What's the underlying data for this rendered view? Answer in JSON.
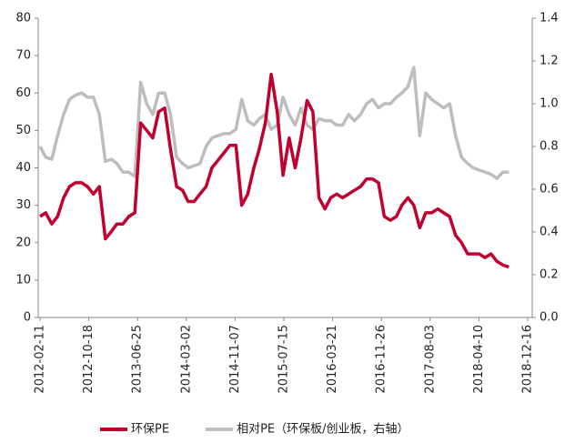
{
  "chart_data": {
    "type": "line",
    "x": [
      "2012-02-11",
      "2012-03-11",
      "2012-04-11",
      "2012-05-11",
      "2012-06-11",
      "2012-07-11",
      "2012-08-11",
      "2012-09-11",
      "2012-10-11",
      "2012-11-11",
      "2012-12-11",
      "2013-01-11",
      "2013-02-11",
      "2013-03-11",
      "2013-04-11",
      "2013-05-11",
      "2013-06-11",
      "2013-07-11",
      "2013-08-11",
      "2013-09-11",
      "2013-10-11",
      "2013-11-11",
      "2013-12-11",
      "2014-01-11",
      "2014-02-11",
      "2014-03-11",
      "2014-04-11",
      "2014-05-11",
      "2014-06-11",
      "2014-07-11",
      "2014-08-11",
      "2014-09-11",
      "2014-10-11",
      "2014-11-11",
      "2014-12-11",
      "2015-01-11",
      "2015-02-11",
      "2015-03-11",
      "2015-04-11",
      "2015-05-11",
      "2015-06-11",
      "2015-07-11",
      "2015-08-11",
      "2015-09-11",
      "2015-10-11",
      "2015-11-11",
      "2015-12-11",
      "2016-01-11",
      "2016-02-11",
      "2016-03-11",
      "2016-04-11",
      "2016-05-11",
      "2016-06-11",
      "2016-07-11",
      "2016-08-11",
      "2016-09-11",
      "2016-10-11",
      "2016-11-11",
      "2016-12-11",
      "2017-01-11",
      "2017-02-11",
      "2017-03-11",
      "2017-04-11",
      "2017-05-11",
      "2017-06-11",
      "2017-07-11",
      "2017-08-11",
      "2017-09-11",
      "2017-10-11",
      "2017-11-11",
      "2017-12-11",
      "2018-01-11",
      "2018-02-11",
      "2018-03-11",
      "2018-04-11",
      "2018-05-11",
      "2018-06-11",
      "2018-07-11",
      "2018-08-11",
      "2018-09-11"
    ],
    "series": [
      {
        "name": "环保PE",
        "color": "#c0002f",
        "values": [
          27,
          28,
          25,
          27,
          32,
          35,
          36,
          36,
          35,
          33,
          35,
          21,
          23,
          25,
          25,
          27,
          28,
          52,
          50,
          48,
          55,
          56,
          45,
          35,
          34,
          31,
          31,
          33,
          35,
          40,
          42,
          44,
          46,
          46,
          30,
          33,
          40,
          45,
          52,
          65,
          55,
          38,
          48,
          40,
          48,
          58,
          55,
          32,
          29,
          32,
          33,
          32,
          33,
          34,
          35,
          37,
          37,
          36,
          27,
          26,
          27,
          30,
          32,
          30,
          24,
          28,
          28,
          29,
          28,
          27,
          22,
          20,
          17,
          17,
          17,
          16,
          17,
          15,
          14,
          13.5
        ]
      },
      {
        "name": "相对PE（环保板/创业板，右轴）",
        "color": "#bdbdbd",
        "axis": "y2",
        "values": [
          0.8,
          0.75,
          0.74,
          0.85,
          0.95,
          1.02,
          1.04,
          1.05,
          1.03,
          1.03,
          0.95,
          0.73,
          0.74,
          0.72,
          0.68,
          0.68,
          0.66,
          1.1,
          1.0,
          0.95,
          1.05,
          1.05,
          0.95,
          0.75,
          0.72,
          0.7,
          0.71,
          0.72,
          0.8,
          0.84,
          0.85,
          0.86,
          0.86,
          0.88,
          1.02,
          0.92,
          0.9,
          0.93,
          0.95,
          0.88,
          0.9,
          1.03,
          0.95,
          0.9,
          0.98,
          0.9,
          0.88,
          0.93,
          0.92,
          0.92,
          0.9,
          0.9,
          0.95,
          0.92,
          0.95,
          1.0,
          1.02,
          0.98,
          1.0,
          1.0,
          1.03,
          1.05,
          1.08,
          1.17,
          0.85,
          1.05,
          1.02,
          1.0,
          0.98,
          1.0,
          0.85,
          0.75,
          0.72,
          0.7,
          0.69,
          0.68,
          0.67,
          0.65,
          0.68,
          0.68
        ]
      }
    ],
    "xlim": [
      "2012-02-11",
      "2018-12-16"
    ],
    "xticks": [
      "2012-02-11",
      "2012-10-18",
      "2013-06-25",
      "2014-03-02",
      "2014-11-07",
      "2015-07-15",
      "2016-03-21",
      "2016-11-26",
      "2017-08-03",
      "2018-04-10",
      "2018-12-16"
    ],
    "ylim": [
      0,
      80
    ],
    "yticks": [
      0,
      10,
      20,
      30,
      40,
      50,
      60,
      70,
      80
    ],
    "y2lim": [
      0,
      1.4
    ],
    "y2ticks": [
      {
        "value": 0,
        "label": "0.0"
      },
      0.2,
      0.4,
      0.6,
      0.8,
      {
        "value": 1,
        "label": "1.0"
      },
      1.2,
      1.4
    ],
    "legend": "bottom"
  }
}
